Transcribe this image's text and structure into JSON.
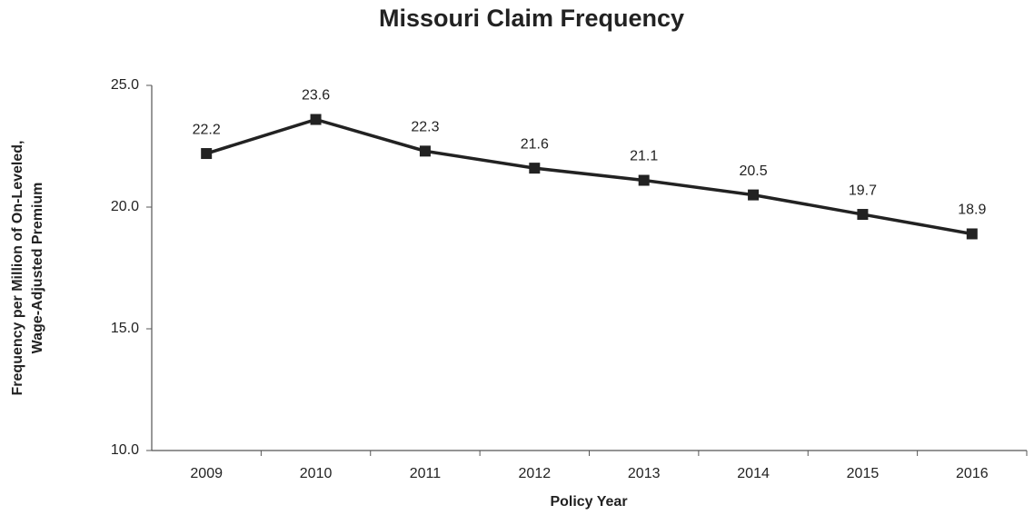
{
  "chart_data": {
    "type": "line",
    "title": "Missouri Claim Frequency",
    "xlabel": "Policy Year",
    "ylabel": [
      "Frequency per Million of On-Leveled,",
      "Wage-Adjusted Premium"
    ],
    "categories": [
      "2009",
      "2010",
      "2011",
      "2012",
      "2013",
      "2014",
      "2015",
      "2016"
    ],
    "values": [
      22.2,
      23.6,
      22.3,
      21.6,
      21.1,
      20.5,
      19.7,
      18.9
    ],
    "color": "#222222",
    "ylim": [
      10,
      25
    ],
    "yticks": [
      {
        "value": 10,
        "label": "10.0"
      },
      {
        "value": 15,
        "label": "15.0"
      },
      {
        "value": 20,
        "label": "20.0"
      },
      {
        "value": 25,
        "label": "25.0"
      }
    ],
    "grid": false
  }
}
